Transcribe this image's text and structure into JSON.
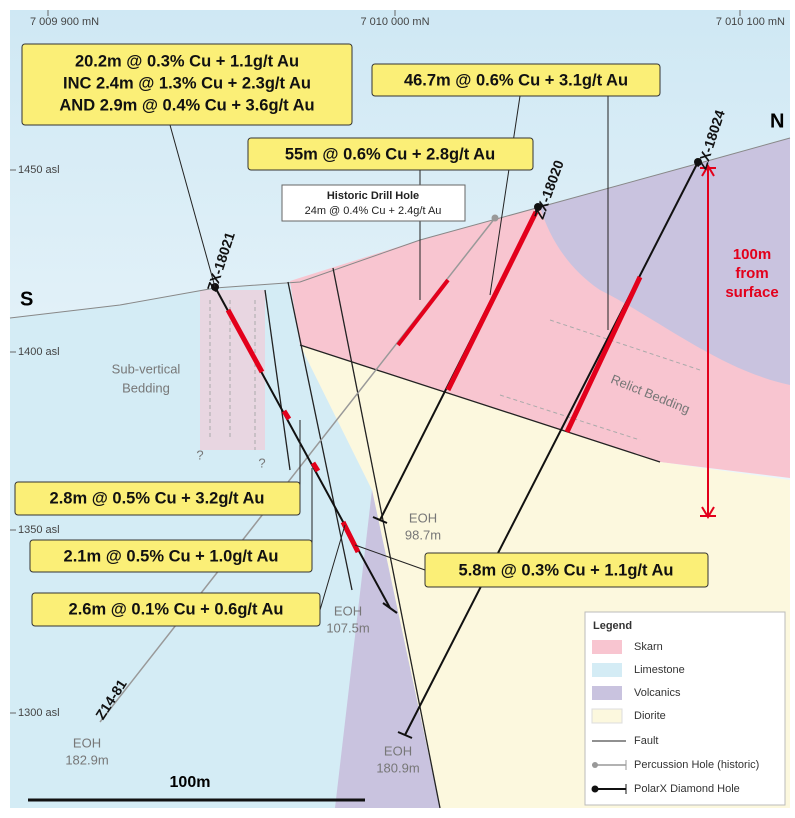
{
  "axis": {
    "top_labels": [
      "7 009 900 mN",
      "7 010 000 mN",
      "7 010 100 mN"
    ],
    "left_labels": [
      "1450 asl",
      "1400 asl",
      "1350 asl",
      "1300 asl"
    ]
  },
  "compass": {
    "south": "S",
    "north": "N"
  },
  "callouts": [
    {
      "lines": [
        "20.2m @ 0.3% Cu + 1.1g/t Au",
        "INC 2.4m @ 1.3% Cu + 2.3g/t Au",
        "AND 2.9m @ 0.4% Cu + 3.6g/t Au"
      ]
    },
    {
      "lines": [
        "46.7m @ 0.6% Cu + 3.1g/t Au"
      ]
    },
    {
      "lines": [
        "55m @ 0.6% Cu + 2.8g/t Au"
      ]
    },
    {
      "lines": [
        "2.8m @ 0.5% Cu + 3.2g/t Au"
      ]
    },
    {
      "lines": [
        "2.1m @ 0.5% Cu + 1.0g/t Au"
      ]
    },
    {
      "lines": [
        "2.6m @ 0.1% Cu + 0.6g/t Au"
      ]
    },
    {
      "lines": [
        "5.8m @ 0.3% Cu + 1.1g/t Au"
      ]
    }
  ],
  "historic": {
    "title": "Historic Drill Hole",
    "detail": "24m @ 0.4% Cu + 2.4g/t Au"
  },
  "holes": [
    "ZX-18021",
    "ZX-18020",
    "ZX-18024",
    "Z14-81"
  ],
  "eoh": [
    {
      "label": "EOH",
      "depth": "98.7m"
    },
    {
      "label": "EOH",
      "depth": "107.5m"
    },
    {
      "label": "EOH",
      "depth": "182.9m"
    },
    {
      "label": "EOH",
      "depth": "180.9m"
    }
  ],
  "depth_marker": [
    "100m",
    "from",
    "surface"
  ],
  "notes": {
    "bedding": [
      "Sub-vertical",
      "Bedding"
    ],
    "relict": "Relict Bedding",
    "unknown": [
      "?",
      "?"
    ]
  },
  "scale_label": "100m",
  "legend": {
    "title": "Legend",
    "items": [
      "Skarn",
      "Limestone",
      "Volcanics",
      "Diorite",
      "Fault",
      "Percussion Hole (historic)",
      "PolarX Diamond Hole"
    ]
  }
}
